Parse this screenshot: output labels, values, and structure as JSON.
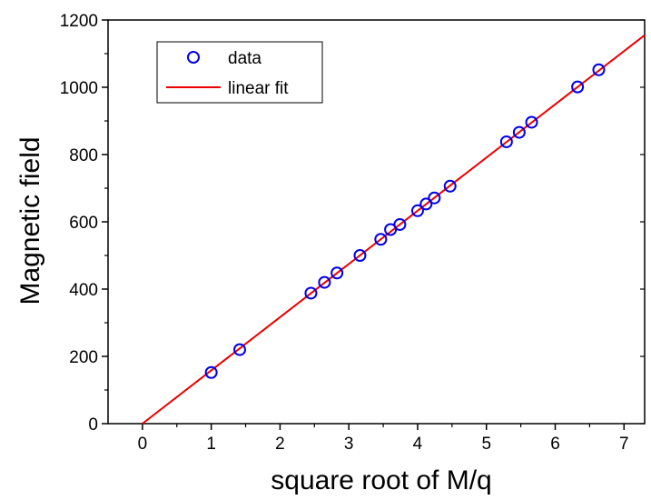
{
  "chart_data": {
    "type": "scatter",
    "xlabel": "square root of M/q",
    "ylabel": "Magnetic field",
    "xlim": [
      -0.5,
      7.3
    ],
    "ylim": [
      0,
      1200
    ],
    "xticks": [
      0,
      1,
      2,
      3,
      4,
      5,
      6,
      7
    ],
    "yticks": [
      0,
      200,
      400,
      600,
      800,
      1000,
      1200
    ],
    "legend_position": "top-left",
    "series": [
      {
        "name": "data",
        "kind": "markers",
        "marker": "open-circle",
        "color": "#0000ee",
        "points": [
          {
            "x": 1.0,
            "y": 152
          },
          {
            "x": 1.414,
            "y": 220
          },
          {
            "x": 2.449,
            "y": 388
          },
          {
            "x": 2.646,
            "y": 420
          },
          {
            "x": 2.828,
            "y": 448
          },
          {
            "x": 3.162,
            "y": 500
          },
          {
            "x": 3.464,
            "y": 548
          },
          {
            "x": 3.606,
            "y": 577
          },
          {
            "x": 3.742,
            "y": 592
          },
          {
            "x": 4.0,
            "y": 633
          },
          {
            "x": 4.123,
            "y": 653
          },
          {
            "x": 4.243,
            "y": 671
          },
          {
            "x": 4.472,
            "y": 706
          },
          {
            "x": 5.292,
            "y": 838
          },
          {
            "x": 5.477,
            "y": 866
          },
          {
            "x": 5.657,
            "y": 896
          },
          {
            "x": 6.325,
            "y": 1001
          },
          {
            "x": 6.633,
            "y": 1052
          }
        ]
      },
      {
        "name": "linear fit",
        "kind": "line",
        "color": "#ee0000",
        "points": [
          {
            "x": 0.0,
            "y": 0
          },
          {
            "x": 7.3,
            "y": 1155
          }
        ]
      }
    ]
  }
}
